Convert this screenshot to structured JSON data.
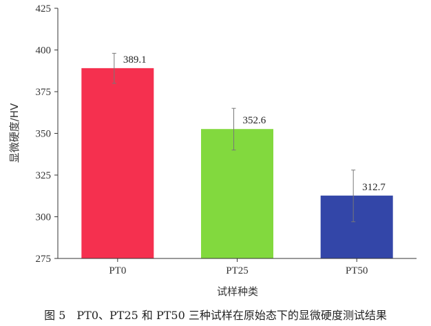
{
  "chart_data": {
    "type": "bar",
    "categories": [
      "PT0",
      "PT25",
      "PT50"
    ],
    "values": [
      389.1,
      352.6,
      312.7
    ],
    "error_bars": [
      [
        380.0,
        398.0
      ],
      [
        340.0,
        365.0
      ],
      [
        297.0,
        328.0
      ]
    ],
    "data_labels": [
      "389.1",
      "352.6",
      "312.7"
    ],
    "colors": [
      "#f5304f",
      "#82d93e",
      "#3346a8"
    ],
    "xlabel": "试样种类",
    "ylabel": "显微硬度/HV",
    "ylim": [
      275,
      425
    ],
    "yticks": [
      275,
      300,
      325,
      350,
      375,
      400,
      425
    ],
    "grid": false,
    "legend": "none"
  },
  "caption": "图 5　PT0、PT25 和 PT50 三种试样在原始态下的显微硬度测试结果"
}
